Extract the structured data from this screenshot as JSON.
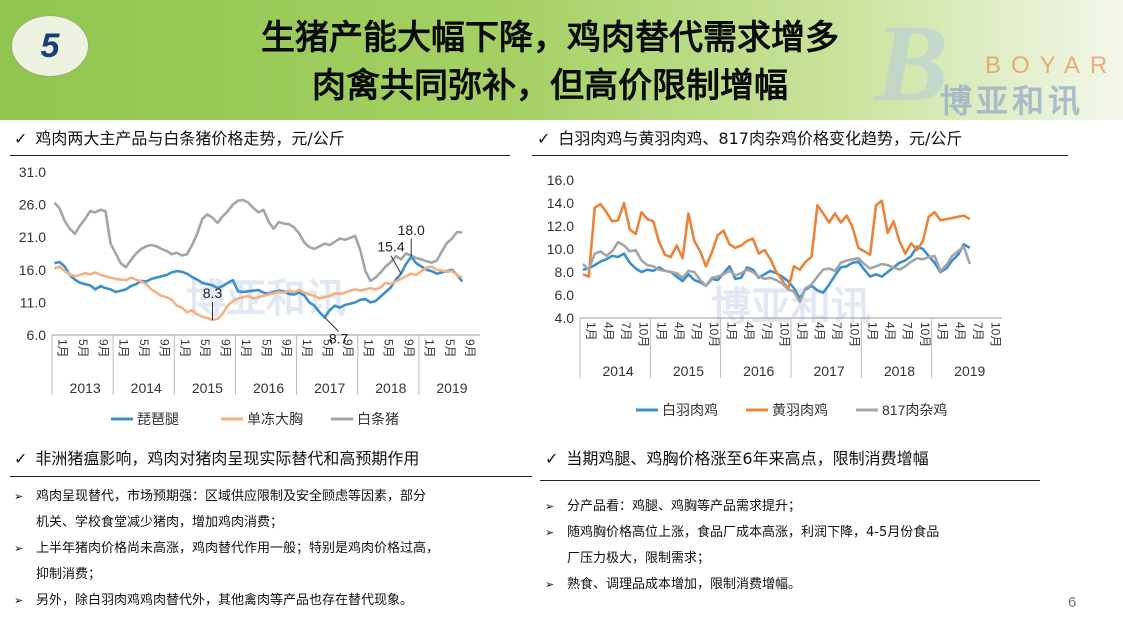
{
  "header": {
    "badge": "5",
    "title_line1": "生猪产能大幅下降，鸡肉替代需求增多",
    "title_line2": "肉禽共同弥补，但高价限制增幅",
    "logo_en": "BOYAR",
    "logo_cn": "博亚和讯"
  },
  "colors": {
    "blue": "#3c8fcb",
    "orange": "#e8843a",
    "peach": "#f4b183",
    "gray": "#a5a5a5",
    "banner": "#9dcb5c"
  },
  "section_titles": {
    "tl": "鸡肉两大主产品与白条猪价格走势，元/公斤",
    "tr": "白羽肉鸡与黄羽肉鸡、817肉杂鸡价格变化趋势，元/公斤",
    "bl": "非洲猪瘟影响，鸡肉对猪肉呈现实际替代和高预期作用",
    "br": "当期鸡腿、鸡胸价格涨至6年来高点，限制消费增幅"
  },
  "check": "✓",
  "bullets_left": [
    {
      "line1": "鸡肉呈现替代，市场预期强：区域供应限制及安全顾虑等因素，部分",
      "line2": "机关、学校食堂减少猪肉，增加鸡肉消费；"
    },
    {
      "line1": "上半年猪肉价格尚未高涨，鸡肉替代作用一般；特别是鸡肉价格过高，",
      "line2": "抑制消费；"
    },
    {
      "line1": "另外，除白羽肉鸡鸡肉替代外，其他禽肉等产品也存在替代现象。",
      "line2": ""
    }
  ],
  "bullets_right": [
    {
      "line1": "分产品看：鸡腿、鸡胸等产品需求提升；",
      "line2": ""
    },
    {
      "line1": "随鸡胸价格高位上涨，食品厂成本高涨，利润下降，4-5月份食品",
      "line2": "厂压力极大，限制需求；"
    },
    {
      "line1": "熟食、调理品成本增加，限制消费增幅。",
      "line2": ""
    }
  ],
  "bullet_mark": "➢",
  "page_number": "6",
  "chart_data": [
    {
      "type": "line",
      "ylim": [
        6.0,
        31.0
      ],
      "y_ticks": [
        "31.0",
        "26.0",
        "21.0",
        "16.0",
        "11.0",
        "6.0"
      ],
      "y_tick_values": [
        31,
        26,
        21,
        16,
        11,
        6
      ],
      "x_month_labels": [
        "1月",
        "5月",
        "9月"
      ],
      "years": [
        "2013",
        "2014",
        "2015",
        "2016",
        "2017",
        "2018",
        "2019"
      ],
      "points_per_year": 12,
      "series": [
        {
          "name": "琵琶腿",
          "color": "#3c8fcb",
          "values": [
            17,
            17.2,
            16.5,
            15.2,
            14.5,
            14,
            13.8,
            13.6,
            13,
            13.5,
            13.2,
            13,
            12.6,
            12.8,
            13,
            13.5,
            13.8,
            14.3,
            14.2,
            14.6,
            14.8,
            15,
            15.2,
            15.6,
            15.8,
            15.7,
            15.4,
            14.9,
            14.5,
            14,
            13.8,
            13.6,
            13.2,
            13.5,
            14,
            14.4,
            12.7,
            12.6,
            12.7,
            12.8,
            12.9,
            12.5,
            12.3,
            12.6,
            12.8,
            12.7,
            12.3,
            12.2,
            12.5,
            12.1,
            11,
            10.5,
            9.5,
            8.7,
            9.8,
            10.5,
            10.2,
            10.6,
            10.8,
            11,
            11.4,
            11.5,
            11,
            11.2,
            11.9,
            12.6,
            13.3,
            14.5,
            15.4,
            16.9,
            18,
            17,
            16.5,
            16,
            15.8,
            15.4,
            15.6,
            15.8,
            16,
            15.2,
            14.2
          ]
        },
        {
          "name": "单冻大胸",
          "color": "#f4b183",
          "values": [
            16.2,
            16.5,
            15.8,
            15.3,
            15,
            15.2,
            15.5,
            15.3,
            15.6,
            15.2,
            15,
            14.8,
            14.6,
            14.5,
            14.4,
            14.8,
            14.5,
            14.2,
            13.8,
            13,
            12.5,
            12,
            11.8,
            11.4,
            10.5,
            10.2,
            9.5,
            9.8,
            9.2,
            8.8,
            8.6,
            8.3,
            8.5,
            9.3,
            10.5,
            11.2,
            11.6,
            11.8,
            12,
            11.6,
            11.8,
            12,
            12.2,
            12.4,
            12.6,
            12.5,
            12.8,
            12.6,
            12.9,
            12.5,
            12.2,
            12,
            11.6,
            11.8,
            12,
            12.4,
            12.3,
            12.5,
            12.8,
            13,
            12.8,
            13,
            13.2,
            13,
            13.3,
            14,
            13.8,
            14.2,
            14.6,
            15,
            15.4,
            15.2,
            15.8,
            16.3,
            16.5,
            16,
            15.9,
            15.7,
            15.8,
            15.2,
            14.8
          ]
        },
        {
          "name": "白条猪",
          "color": "#a5a5a5",
          "values": [
            26.3,
            25.4,
            23.5,
            22.3,
            21.5,
            22.8,
            23.8,
            25,
            24.8,
            25.2,
            25,
            20,
            18.5,
            17,
            16.4,
            17.5,
            18.5,
            19.2,
            19.6,
            19.8,
            19.6,
            19.2,
            18.9,
            18.4,
            18.6,
            18.2,
            18.4,
            19.8,
            21.5,
            23.8,
            24.5,
            24,
            23.2,
            24.2,
            25,
            26,
            26.6,
            26.7,
            26.3,
            25.5,
            24.8,
            25.2,
            23.4,
            22.3,
            23.3,
            23.1,
            23,
            22.5,
            21.6,
            20.2,
            19.5,
            19.2,
            19.6,
            20,
            19.8,
            20.3,
            20.8,
            20.6,
            20.9,
            21.2,
            19,
            15.8,
            14.3,
            14.8,
            15.6,
            16.5,
            17.2,
            18.1,
            17.6,
            18.5,
            18.2,
            17.8,
            17.6,
            17.3,
            17.1,
            17.4,
            18.8,
            20.1,
            20.8,
            21.8,
            21.7
          ]
        }
      ],
      "annotations": [
        {
          "text": "18.0",
          "series": 0,
          "index": 70
        },
        {
          "text": "15.4",
          "series": 0,
          "index": 68
        },
        {
          "text": "8.3",
          "series": 1,
          "index": 31
        },
        {
          "text": "8.7",
          "series": 0,
          "index": 53
        }
      ]
    },
    {
      "type": "line",
      "ylim": [
        4.0,
        16.0
      ],
      "y_ticks": [
        "16.0",
        "14.0",
        "12.0",
        "10.0",
        "8.0",
        "6.0",
        "4.0"
      ],
      "y_tick_values": [
        16,
        14,
        12,
        10,
        8,
        6,
        4
      ],
      "x_month_labels": [
        "1月",
        "4月",
        "7月",
        "10月"
      ],
      "years": [
        "2014",
        "2015",
        "2016",
        "2017",
        "2018",
        "2019"
      ],
      "points_per_year": 12,
      "series": [
        {
          "name": "白羽肉鸡",
          "color": "#3c8fcb",
          "values": [
            8.2,
            8.3,
            8.6,
            8.9,
            9.1,
            9.4,
            9.3,
            9.6,
            8.8,
            8.3,
            8,
            8.2,
            8.1,
            8.4,
            8.1,
            8,
            7.6,
            7.2,
            7.8,
            7.3,
            7.1,
            6.8,
            7.4,
            7.3,
            7.9,
            8.5,
            7.4,
            7.5,
            8.4,
            8.2,
            7.5,
            7.8,
            8.1,
            7.9,
            7.6,
            7.2,
            6.6,
            5.7,
            6.5,
            6.8,
            6.4,
            6.2,
            6.9,
            7.7,
            8.4,
            8.5,
            8.8,
            8.9,
            8.2,
            7.6,
            7.8,
            7.6,
            8,
            8.4,
            8.8,
            9,
            9.4,
            10.2,
            10,
            9.4,
            8.8,
            8,
            8.3,
            9,
            9.5,
            10.4,
            10.1
          ]
        },
        {
          "name": "黄羽肉鸡",
          "color": "#e8843a",
          "values": [
            7.8,
            7.6,
            13.6,
            13.9,
            13.2,
            12.4,
            12.5,
            14,
            11.7,
            11.3,
            13.2,
            12.6,
            12.4,
            10.6,
            9.5,
            9.3,
            10.3,
            9.2,
            13.1,
            10.7,
            9.8,
            8.5,
            9.7,
            11.2,
            11.6,
            10.4,
            10.1,
            10.3,
            10.7,
            10.9,
            9.6,
            9.9,
            9.1,
            8,
            7.3,
            6.5,
            8.5,
            8.2,
            8.9,
            9.3,
            13.8,
            13.1,
            12.3,
            13.1,
            12.3,
            12.9,
            11.9,
            10.1,
            9.8,
            9.5,
            13.8,
            14.2,
            11.4,
            12.4,
            10.7,
            9.6,
            10.5,
            9.9,
            10.7,
            12.8,
            13.2,
            12.5,
            12.6,
            12.7,
            12.8,
            12.9,
            12.6
          ]
        },
        {
          "name": "817肉杂鸡",
          "color": "#a5a5a5",
          "values": [
            8.7,
            8.2,
            9.6,
            9.8,
            9.4,
            9.8,
            10.6,
            10.3,
            9.8,
            9.9,
            9,
            8.6,
            8.5,
            8.2,
            8.1,
            8,
            7.9,
            7.5,
            8.1,
            8,
            7.3,
            6.8,
            7.5,
            7.6,
            7.8,
            8.1,
            7.7,
            7.9,
            8.2,
            8,
            7.6,
            7.4,
            7.5,
            7.3,
            7,
            6.5,
            6.3,
            5.4,
            6.6,
            6.9,
            7.6,
            8.2,
            8.3,
            8.1,
            8.8,
            9,
            9.1,
            9.2,
            8.7,
            8.3,
            8.5,
            8.7,
            8.6,
            8.4,
            8.2,
            8.5,
            8.9,
            9.2,
            9.1,
            9.3,
            9.4,
            8.1,
            8.6,
            9.4,
            9.8,
            10.2,
            8.7
          ]
        }
      ]
    }
  ]
}
